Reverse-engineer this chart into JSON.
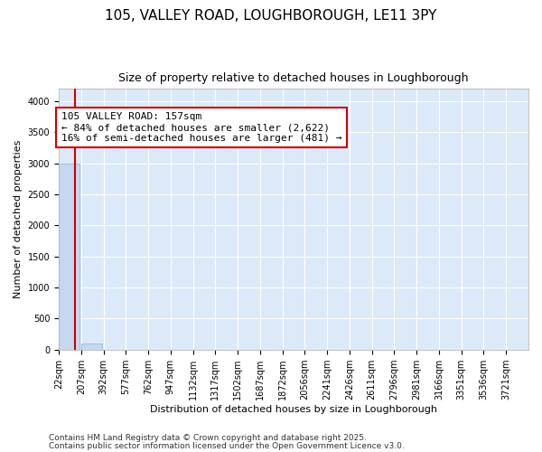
{
  "title": "105, VALLEY ROAD, LOUGHBOROUGH, LE11 3PY",
  "subtitle": "Size of property relative to detached houses in Loughborough",
  "xlabel": "Distribution of detached houses by size in Loughborough",
  "ylabel": "Number of detached properties",
  "footer_line1": "Contains HM Land Registry data © Crown copyright and database right 2025.",
  "footer_line2": "Contains public sector information licensed under the Open Government Licence v3.0.",
  "annotation_title": "105 VALLEY ROAD: 157sqm",
  "annotation_line2": "← 84% of detached houses are smaller (2,622)",
  "annotation_line3": "16% of semi-detached houses are larger (481) →",
  "property_size": 157,
  "ylim": [
    0,
    4200
  ],
  "yticks": [
    0,
    500,
    1000,
    1500,
    2000,
    2500,
    3000,
    3500,
    4000
  ],
  "bin_edges": [
    22,
    207,
    392,
    577,
    762,
    947,
    1132,
    1317,
    1502,
    1687,
    1872,
    2056,
    2241,
    2426,
    2611,
    2796,
    2981,
    3166,
    3351,
    3536,
    3721
  ],
  "bar_heights": [
    3000,
    100,
    0,
    0,
    0,
    0,
    0,
    0,
    0,
    0,
    0,
    0,
    0,
    0,
    0,
    0,
    0,
    0,
    0,
    0
  ],
  "bar_color": "#c5d8f0",
  "bar_edge_color": "#8ab0d8",
  "plot_bg_color": "#dce9f8",
  "figure_bg_color": "#ffffff",
  "grid_color": "#ffffff",
  "vline_color": "#cc0000",
  "annotation_box_color": "#cc0000",
  "annotation_bg": "#ffffff",
  "title_fontsize": 11,
  "subtitle_fontsize": 9,
  "ylabel_fontsize": 8,
  "xlabel_fontsize": 8,
  "tick_fontsize": 7,
  "footer_fontsize": 6.5,
  "annotation_fontsize": 8
}
